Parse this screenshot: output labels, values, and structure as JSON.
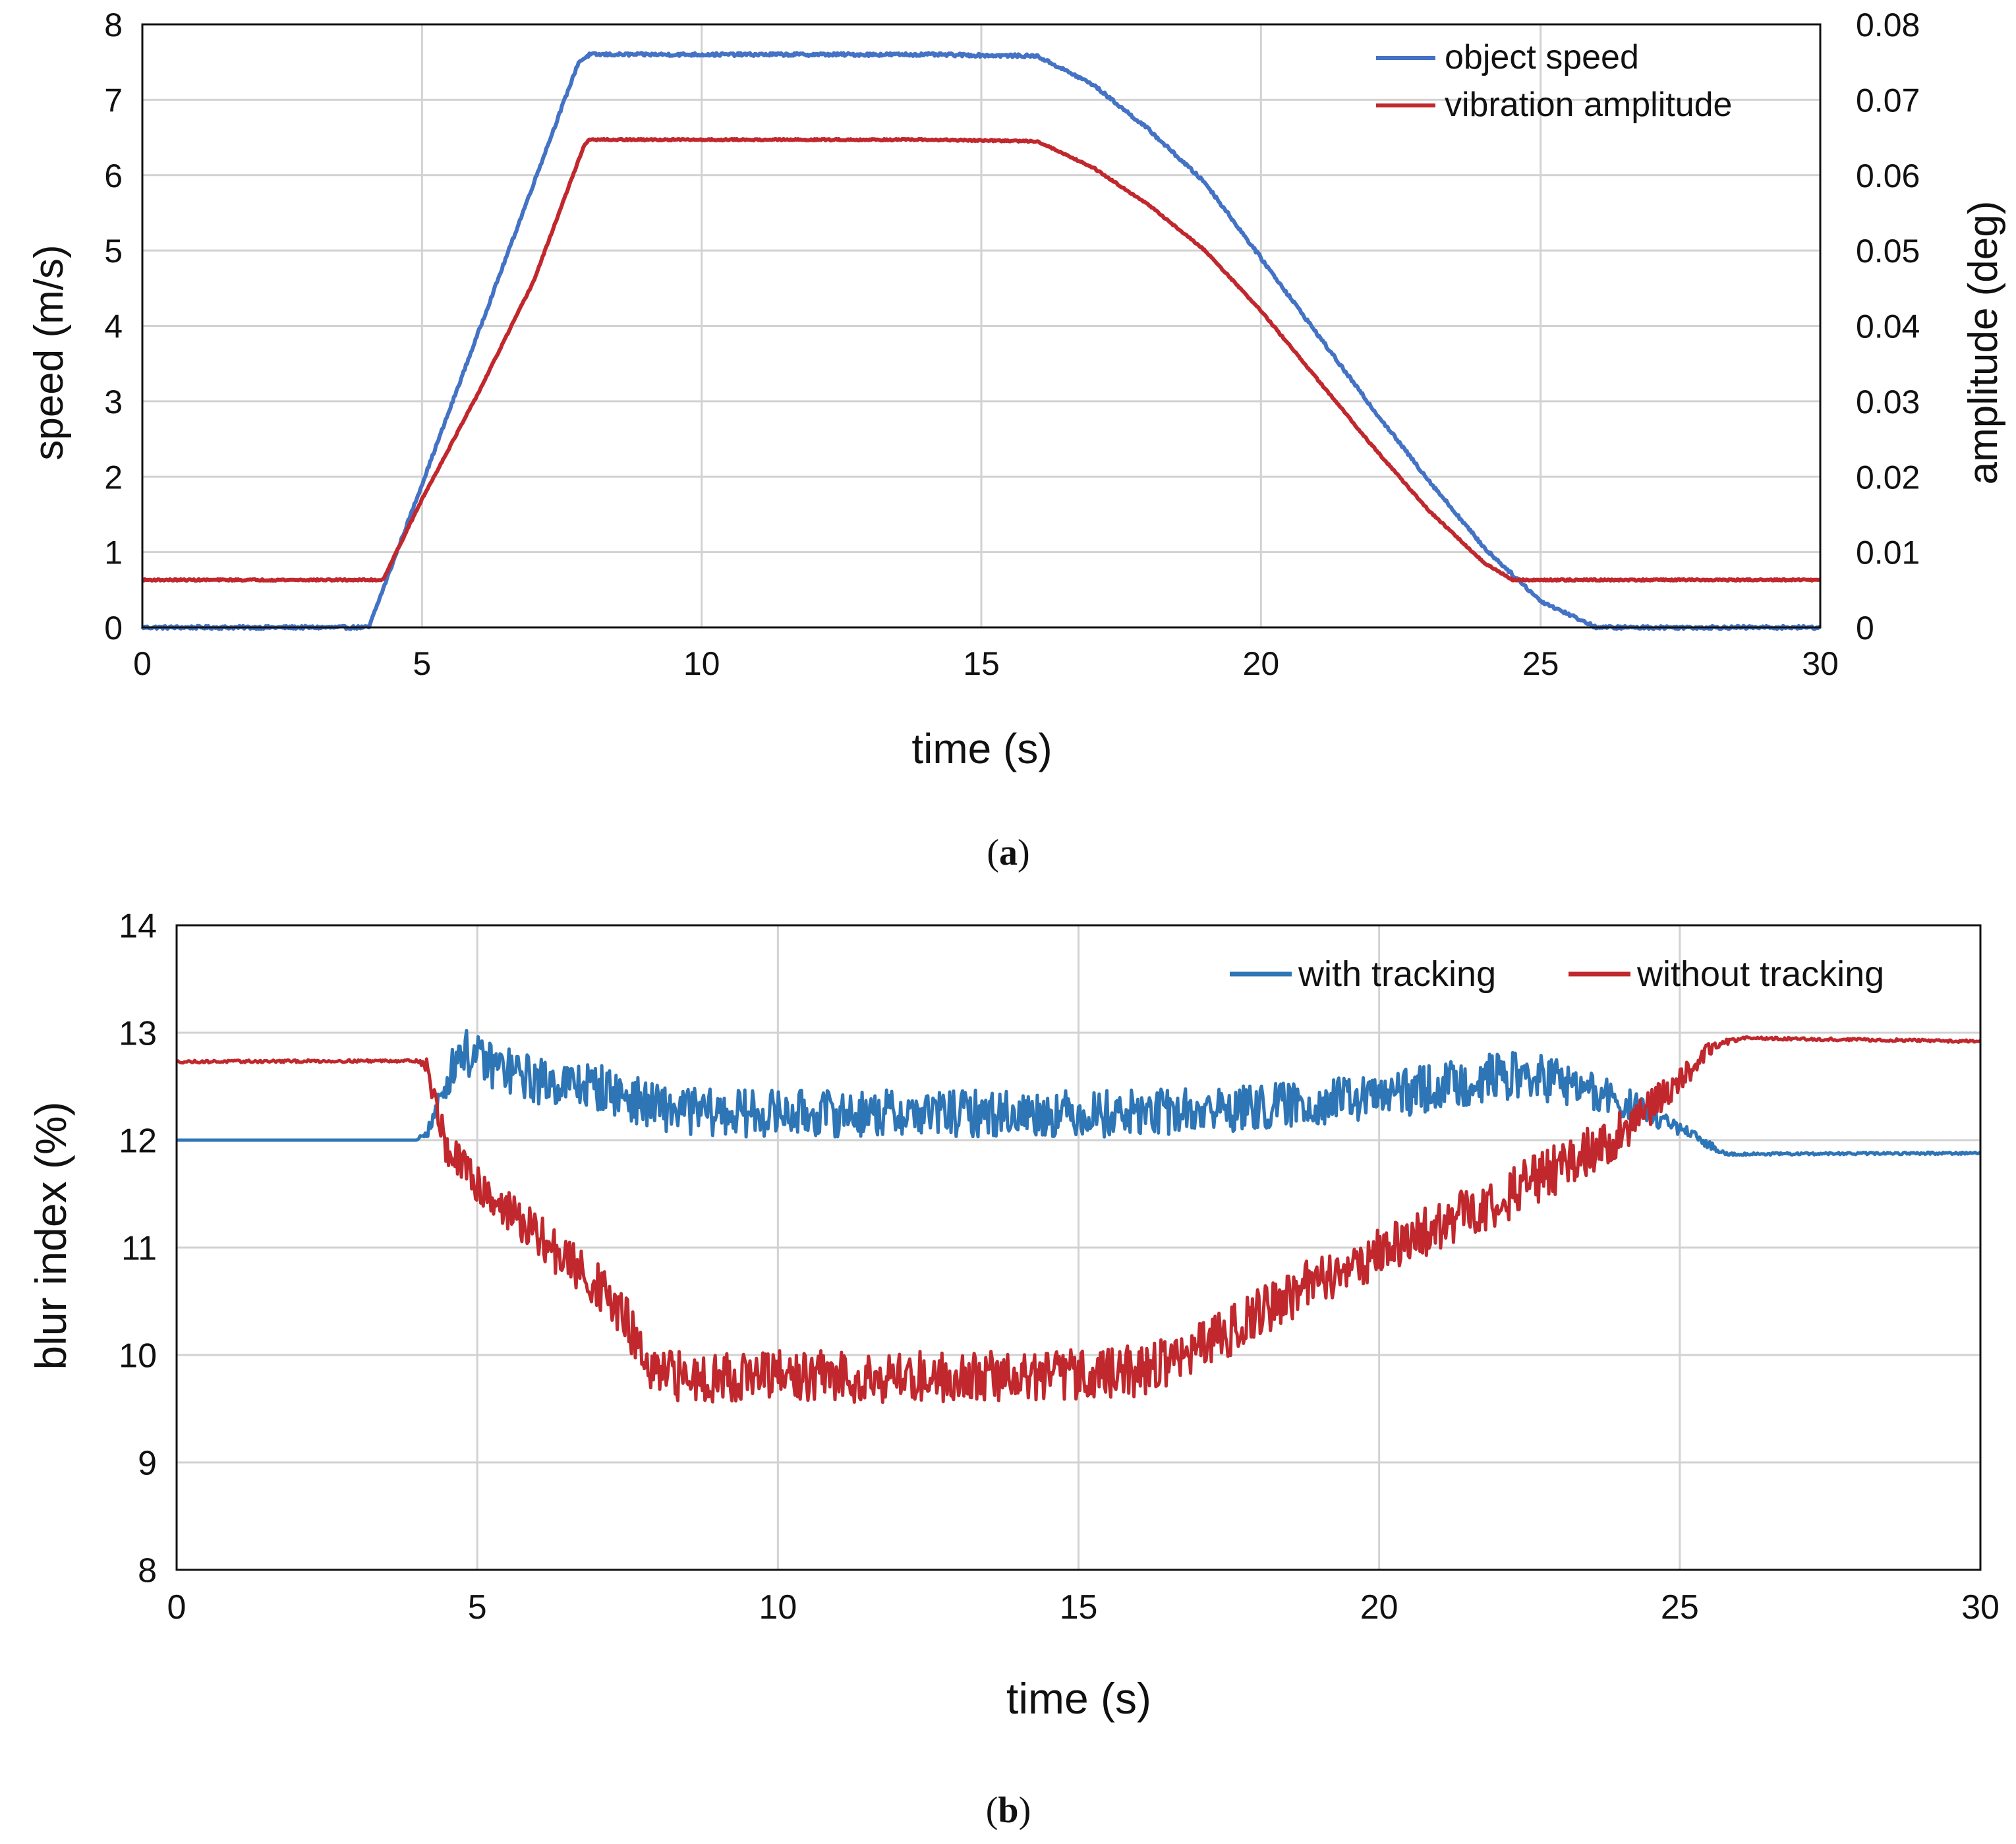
{
  "chart_data": [
    {
      "id": "a",
      "type": "line",
      "caption_open": "(",
      "caption_letter": "a",
      "caption_close": ")",
      "xlabel": "time (s)",
      "ylabel": "speed (m/s)",
      "y2label": "amplitude (deg)",
      "xlim": [
        0,
        30
      ],
      "ylim": [
        0,
        8
      ],
      "y2lim": [
        0,
        0.08
      ],
      "xticks": [
        0,
        5,
        10,
        15,
        20,
        25,
        30
      ],
      "yticks": [
        0,
        1,
        2,
        3,
        4,
        5,
        6,
        7,
        8
      ],
      "y2ticks": [
        0,
        0.01,
        0.02,
        0.03,
        0.04,
        0.05,
        0.06,
        0.07,
        0.08
      ],
      "y2tick_labels": [
        "0",
        "0.01",
        "0.02",
        "0.03",
        "0.04",
        "0.05",
        "0.06",
        "0.07",
        "0.08"
      ],
      "grid": true,
      "legend_position": "top-right",
      "series": [
        {
          "name": "object speed",
          "color": "#4472C4",
          "axis": "left",
          "noise": 0.02,
          "x": [
            0,
            4.05,
            5,
            6,
            7,
            7.8,
            8,
            10,
            12,
            14,
            16,
            17,
            18,
            19,
            20,
            21,
            22,
            23,
            24,
            25,
            26,
            30
          ],
          "y": [
            0,
            0,
            1.9,
            3.9,
            5.9,
            7.5,
            7.6,
            7.6,
            7.6,
            7.6,
            7.58,
            7.2,
            6.6,
            5.9,
            4.9,
            3.9,
            2.9,
            1.95,
            1.05,
            0.35,
            0,
            0
          ]
        },
        {
          "name": "vibration amplitude",
          "color": "#C0282D",
          "axis": "right",
          "noise": 0.0001,
          "x": [
            0,
            4.3,
            5,
            6,
            7,
            7.9,
            8,
            10,
            12,
            14,
            16,
            17,
            18,
            19,
            20,
            21,
            22,
            23,
            24,
            24.5,
            30
          ],
          "y": [
            0.0063,
            0.0063,
            0.017,
            0.031,
            0.046,
            0.064,
            0.0647,
            0.0647,
            0.0647,
            0.0647,
            0.0645,
            0.061,
            0.056,
            0.05,
            0.042,
            0.033,
            0.024,
            0.0155,
            0.0085,
            0.0063,
            0.0063
          ]
        }
      ]
    },
    {
      "id": "b",
      "type": "line",
      "caption_open": "(",
      "caption_letter": "b",
      "caption_close": ")",
      "xlabel": "time (s)",
      "ylabel": "blur index (%)",
      "xlim": [
        0,
        30
      ],
      "ylim": [
        8,
        14
      ],
      "xticks": [
        0,
        5,
        10,
        15,
        20,
        25,
        30
      ],
      "yticks": [
        8,
        9,
        10,
        11,
        12,
        13,
        14
      ],
      "grid": true,
      "legend_position": "top-right",
      "series": [
        {
          "name": "with tracking",
          "color": "#2E75B6",
          "axis": "left",
          "noise": 0.22,
          "x": [
            0,
            4,
            4.2,
            4.7,
            5,
            6,
            7,
            8,
            9,
            10,
            12,
            14,
            16,
            18,
            20,
            21,
            22,
            22.3,
            23,
            24,
            24.5,
            25,
            25.5,
            25.8,
            30
          ],
          "y": [
            12.0,
            12.0,
            12.1,
            12.85,
            12.75,
            12.55,
            12.5,
            12.3,
            12.25,
            12.25,
            12.25,
            12.25,
            12.25,
            12.3,
            12.4,
            12.5,
            12.6,
            12.6,
            12.55,
            12.35,
            12.25,
            12.1,
            11.95,
            11.87,
            11.88
          ],
          "noise_profile": [
            0,
            0,
            0.3,
            1,
            1,
            1,
            1,
            1,
            1,
            1,
            1,
            1,
            1,
            1,
            1,
            1,
            1,
            1,
            1,
            0.8,
            0.5,
            0.3,
            0.2,
            0.05,
            0.05
          ]
        },
        {
          "name": "without tracking",
          "color": "#C0282D",
          "axis": "left",
          "noise": 0.24,
          "x": [
            0,
            4,
            4.15,
            4.5,
            5,
            6,
            7,
            7.5,
            7.9,
            8,
            10,
            12,
            14,
            16,
            17,
            18,
            19,
            20,
            21,
            22,
            23,
            24,
            24.5,
            25,
            25.5,
            26,
            30
          ],
          "y": [
            12.73,
            12.74,
            12.7,
            11.9,
            11.6,
            11.1,
            10.65,
            10.3,
            9.8,
            9.8,
            9.8,
            9.8,
            9.8,
            9.85,
            10.05,
            10.4,
            10.7,
            10.95,
            11.2,
            11.45,
            11.75,
            12.05,
            12.3,
            12.55,
            12.85,
            12.95,
            12.92
          ],
          "noise_profile": [
            0.05,
            0.05,
            0.3,
            0.7,
            0.8,
            0.9,
            0.9,
            0.9,
            0.9,
            1,
            1,
            1,
            1,
            1,
            1,
            1,
            1,
            1,
            1,
            1,
            1,
            0.9,
            0.7,
            0.5,
            0.3,
            0.05,
            0.05
          ]
        }
      ]
    }
  ]
}
